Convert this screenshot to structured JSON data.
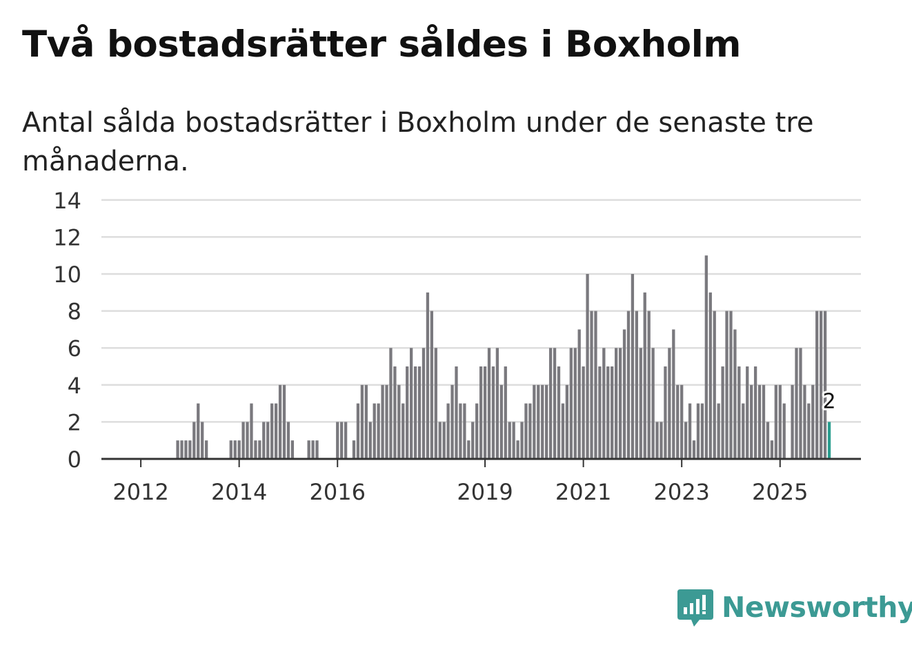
{
  "header": {
    "title": "Två bostadsrätter såldes i Boxholm",
    "subtitle": "Antal sålda bostadsrätter i Boxholm under de senaste tre månaderna."
  },
  "logo": {
    "name": "Newsworthy",
    "icon": "bar-chart-speech-bubble-icon"
  },
  "colors": {
    "bar": "#7a797e",
    "highlight": "#2a9d8f",
    "grid": "#dddddd",
    "axis": "#333333",
    "brand": "#3c9a94"
  },
  "chart_data": {
    "type": "bar",
    "title": "Två bostadsrätter såldes i Boxholm",
    "xlabel": "",
    "ylabel": "",
    "ylim": [
      0,
      14
    ],
    "yticks": [
      0,
      2,
      4,
      6,
      8,
      10,
      12,
      14
    ],
    "xticks": [
      {
        "label": "2012",
        "at": "2012-01"
      },
      {
        "label": "2014",
        "at": "2014-01"
      },
      {
        "label": "2016",
        "at": "2016-01"
      },
      {
        "label": "2019",
        "at": "2019-01"
      },
      {
        "label": "2021",
        "at": "2021-01"
      },
      {
        "label": "2023",
        "at": "2023-01"
      },
      {
        "label": "2025",
        "at": "2025-01"
      }
    ],
    "start_month": "2011-04",
    "frequency": "monthly",
    "values": [
      0,
      0,
      0,
      0,
      0,
      0,
      0,
      0,
      0,
      0,
      0,
      0,
      0,
      0,
      0,
      0,
      0,
      0,
      1,
      1,
      1,
      1,
      2,
      3,
      2,
      1,
      0,
      0,
      0,
      0,
      0,
      1,
      1,
      1,
      2,
      2,
      3,
      1,
      1,
      2,
      2,
      3,
      3,
      4,
      4,
      2,
      1,
      0,
      0,
      0,
      1,
      1,
      1,
      0,
      0,
      0,
      0,
      2,
      2,
      2,
      0,
      1,
      3,
      4,
      4,
      2,
      3,
      3,
      4,
      4,
      6,
      5,
      4,
      3,
      5,
      6,
      5,
      5,
      6,
      9,
      8,
      6,
      2,
      2,
      3,
      4,
      5,
      3,
      3,
      1,
      2,
      3,
      5,
      5,
      6,
      5,
      6,
      4,
      5,
      2,
      2,
      1,
      2,
      3,
      3,
      4,
      4,
      4,
      4,
      6,
      6,
      5,
      3,
      4,
      6,
      6,
      7,
      5,
      10,
      8,
      8,
      5,
      6,
      5,
      5,
      6,
      6,
      7,
      8,
      10,
      8,
      6,
      9,
      8,
      6,
      2,
      2,
      5,
      6,
      7,
      4,
      4,
      2,
      3,
      1,
      3,
      3,
      11,
      9,
      8,
      3,
      5,
      8,
      8,
      7,
      5,
      3,
      5,
      4,
      5,
      4,
      4,
      2,
      1,
      4,
      4,
      3,
      0,
      4,
      6,
      6,
      4,
      3,
      4,
      8,
      8,
      8,
      2
    ],
    "highlight_last": true,
    "last_label": "2"
  }
}
